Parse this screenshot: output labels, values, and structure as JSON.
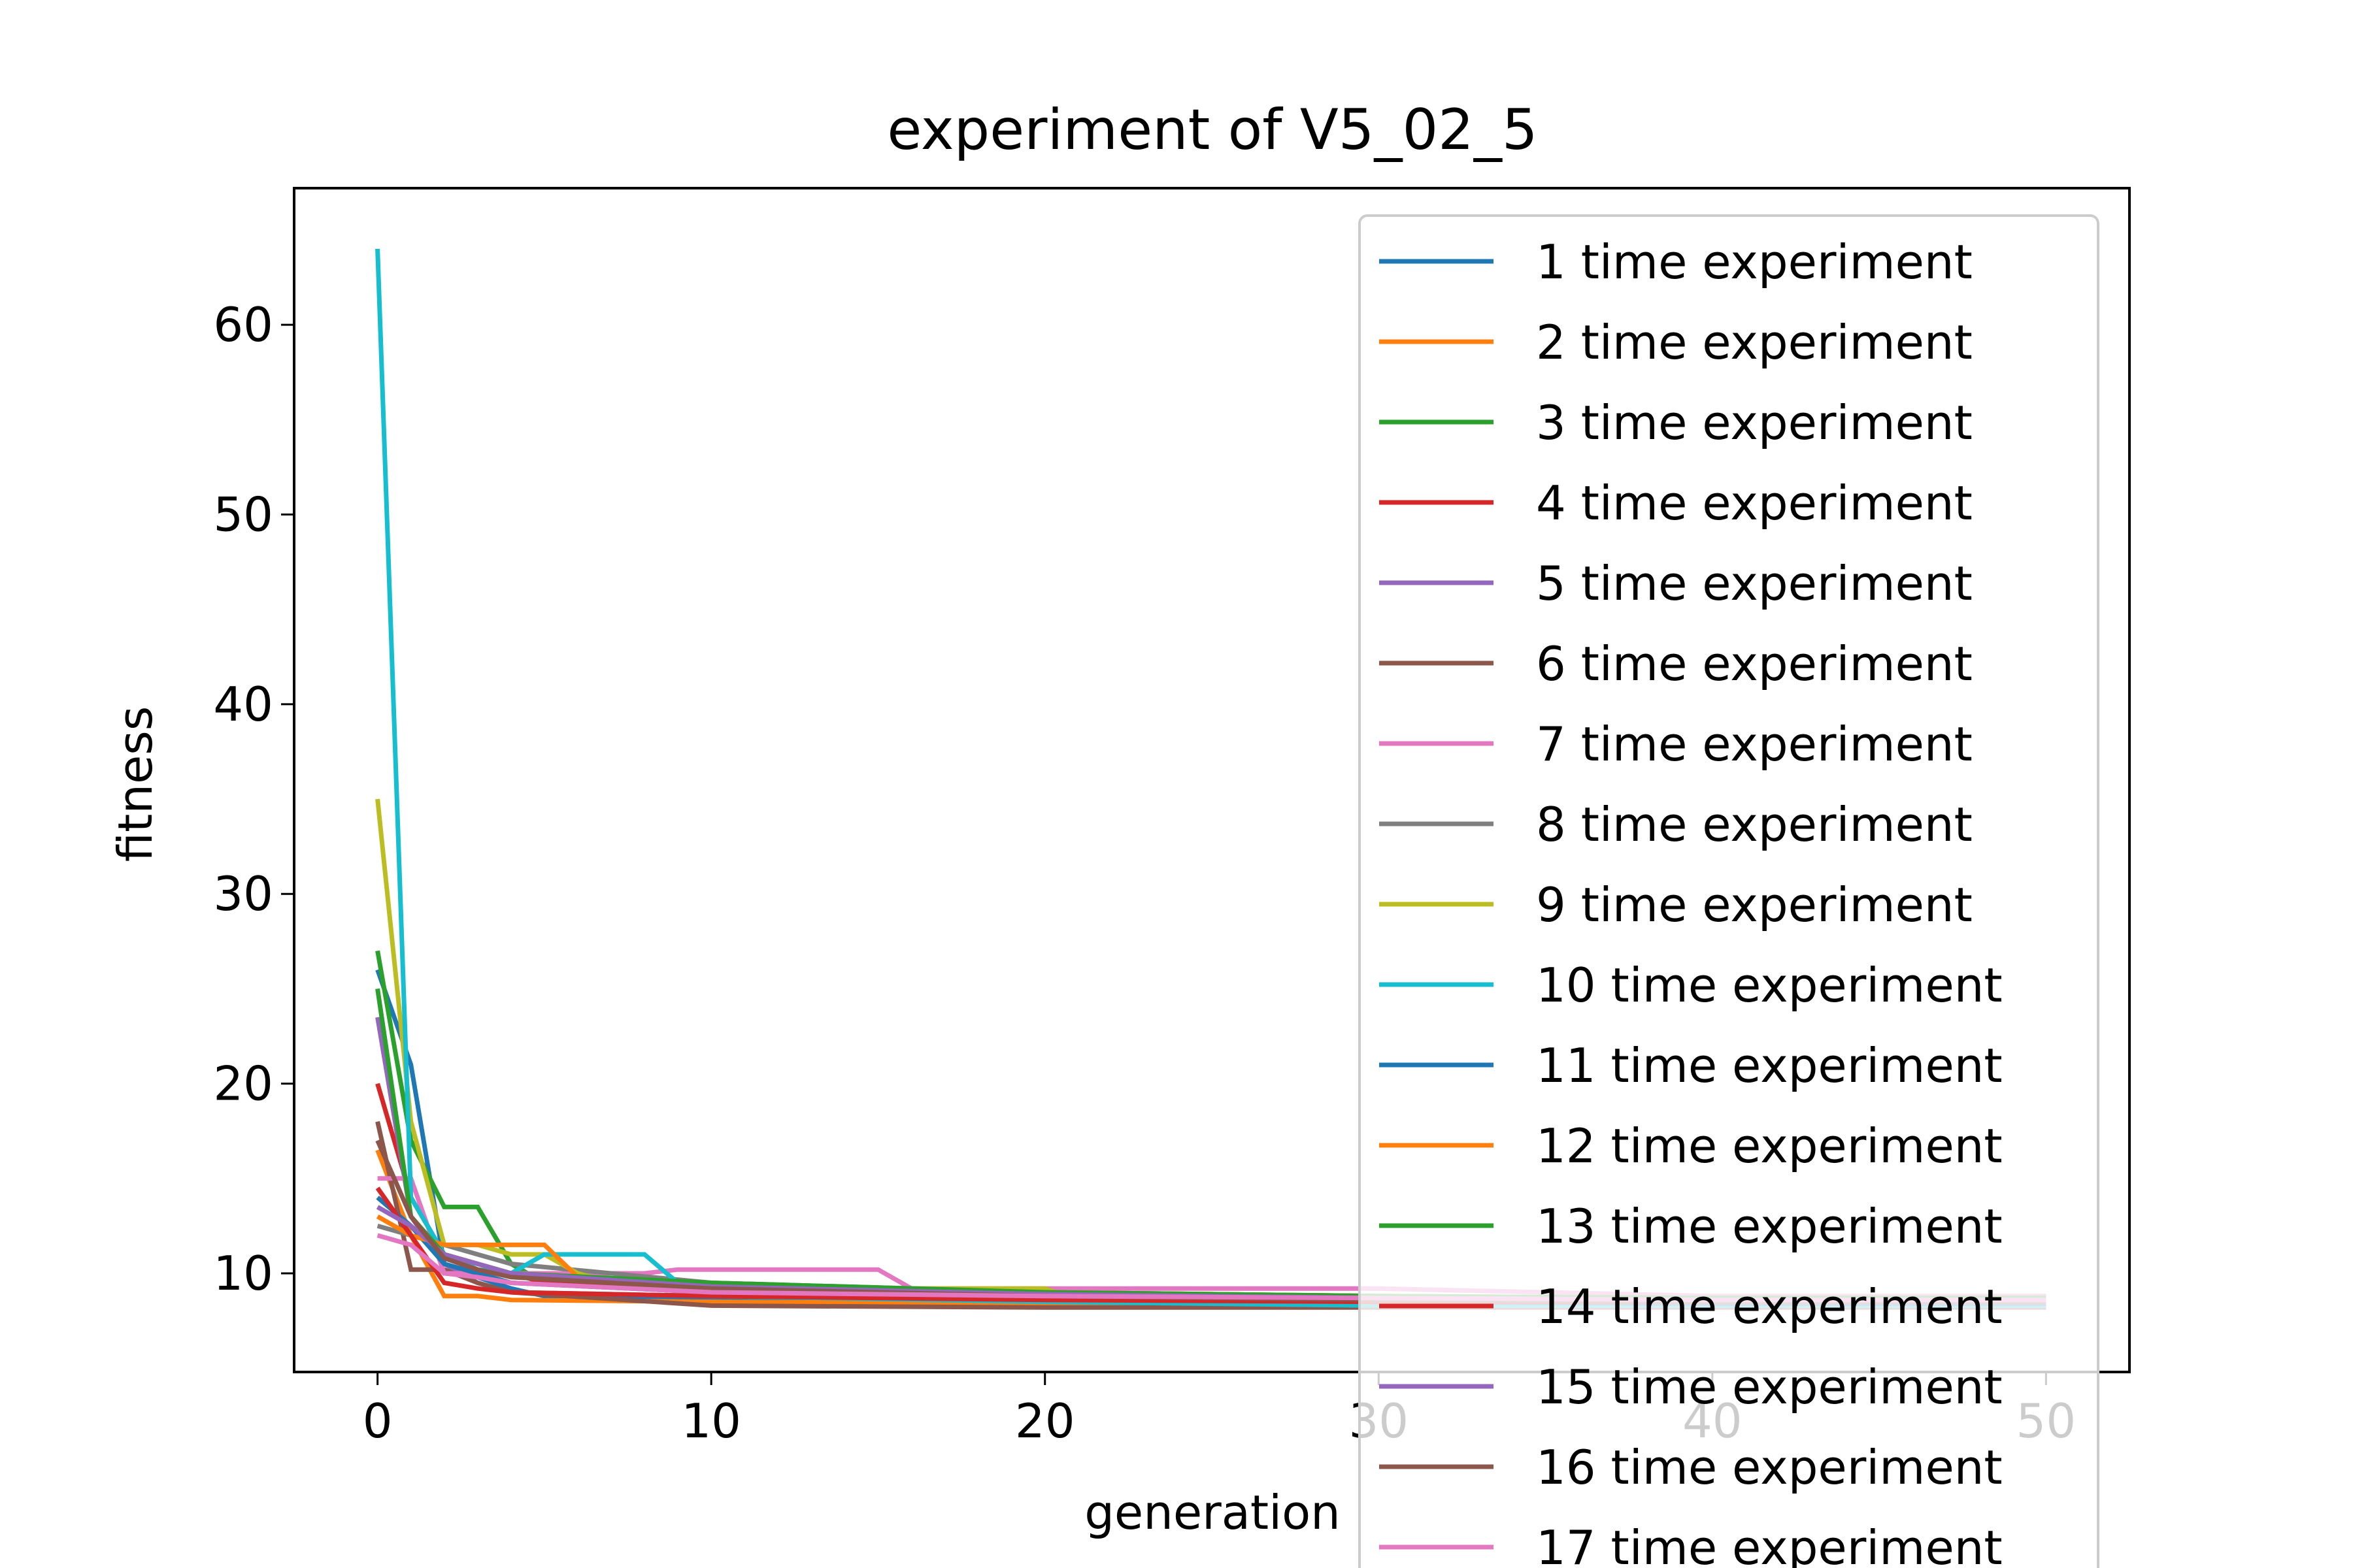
{
  "chart_data": {
    "type": "line",
    "title": "experiment of V5_02_5",
    "xlabel": "generation",
    "ylabel": "fitness",
    "xlim": [
      -2.5,
      52.5
    ],
    "ylim": [
      4.8,
      67.2
    ],
    "xticks": [
      "0",
      "10",
      "20",
      "30",
      "40",
      "50"
    ],
    "yticks": [
      "10",
      "20",
      "30",
      "40",
      "50",
      "60"
    ],
    "grid": false,
    "legend_position": "upper right",
    "colors": [
      "#1f77b4",
      "#ff7f0e",
      "#2ca02c",
      "#d62728",
      "#9467bd",
      "#8c564b",
      "#e377c2",
      "#7f7f7f",
      "#bcbd22",
      "#17becf"
    ],
    "series": [
      {
        "name": "1 time experiment",
        "x": [
          0,
          1,
          2,
          3,
          4,
          5,
          10,
          20,
          30,
          40,
          50
        ],
        "y": [
          26,
          21,
          10.5,
          9.8,
          9.2,
          8.8,
          8.6,
          8.5,
          8.4,
          8.4,
          8.4
        ]
      },
      {
        "name": "2 time experiment",
        "x": [
          0,
          1,
          2,
          3,
          4,
          10,
          20,
          30,
          40,
          50
        ],
        "y": [
          16.5,
          12,
          8.8,
          8.8,
          8.6,
          8.5,
          8.4,
          8.3,
          8.3,
          8.3
        ]
      },
      {
        "name": "3 time experiment",
        "x": [
          0,
          1,
          2,
          3,
          4,
          5,
          10,
          20,
          30,
          40,
          50
        ],
        "y": [
          27,
          17,
          13.5,
          13.5,
          10.5,
          9.5,
          9,
          8.8,
          8.6,
          8.5,
          8.5
        ]
      },
      {
        "name": "4 time experiment",
        "x": [
          0,
          1,
          2,
          3,
          4,
          5,
          10,
          20,
          30,
          40,
          50
        ],
        "y": [
          20,
          14,
          11,
          10.5,
          10,
          9.5,
          9,
          8.7,
          8.5,
          8.4,
          8.4
        ]
      },
      {
        "name": "5 time experiment",
        "x": [
          0,
          1,
          2,
          3,
          4,
          10,
          20,
          30,
          40,
          50
        ],
        "y": [
          23.5,
          13,
          10.5,
          9.5,
          9,
          8.8,
          8.6,
          8.5,
          8.5,
          8.5
        ]
      },
      {
        "name": "6 time experiment",
        "x": [
          0,
          1,
          2,
          3,
          4,
          10,
          20,
          30,
          40,
          50
        ],
        "y": [
          18,
          10.2,
          10.2,
          9.5,
          9,
          8.3,
          8.2,
          8.2,
          8.2,
          8.2
        ]
      },
      {
        "name": "7 time experiment",
        "x": [
          0,
          1,
          2,
          3,
          8,
          9,
          15,
          16,
          30,
          40,
          50
        ],
        "y": [
          15,
          15,
          10,
          10,
          10,
          10.2,
          10.2,
          9.2,
          9.2,
          8.8,
          8.8
        ]
      },
      {
        "name": "8 time experiment",
        "x": [
          0,
          1,
          2,
          3,
          4,
          10,
          20,
          30,
          40,
          50
        ],
        "y": [
          12.5,
          12,
          11.5,
          11,
          10.5,
          9.5,
          9,
          8.8,
          8.7,
          8.7
        ]
      },
      {
        "name": "9 time experiment",
        "x": [
          0,
          1,
          2,
          3,
          4,
          5,
          6,
          7,
          16,
          20,
          21,
          30,
          40,
          50
        ],
        "y": [
          35,
          18,
          11.5,
          11.5,
          11,
          11,
          10,
          9.5,
          9.2,
          9.2,
          8.6,
          8.5,
          8.5,
          8.5
        ]
      },
      {
        "name": "10 time experiment",
        "x": [
          0,
          1,
          2,
          3,
          4,
          5,
          8,
          9,
          10,
          20,
          30,
          40,
          50
        ],
        "y": [
          64,
          14,
          11,
          10.2,
          10,
          11,
          11,
          9.5,
          8.8,
          8.5,
          8.3,
          8.3,
          8.3
        ]
      },
      {
        "name": "11 time experiment",
        "x": [
          0,
          1,
          2,
          3,
          4,
          10,
          20,
          30,
          40,
          50
        ],
        "y": [
          14,
          12.5,
          10.5,
          10,
          9.5,
          9,
          8.7,
          8.5,
          8.4,
          8.4
        ]
      },
      {
        "name": "12 time experiment",
        "x": [
          0,
          1,
          2,
          3,
          4,
          5,
          6,
          10,
          20,
          30,
          40,
          50
        ],
        "y": [
          13,
          12,
          11.5,
          11.5,
          11.5,
          11.5,
          9.8,
          9.2,
          9,
          8.8,
          8.7,
          8.7
        ]
      },
      {
        "name": "13 time experiment",
        "x": [
          0,
          1,
          2,
          3,
          4,
          10,
          20,
          30,
          40,
          50
        ],
        "y": [
          25,
          13,
          11,
          10.5,
          10,
          9.5,
          9,
          8.8,
          8.7,
          8.7
        ]
      },
      {
        "name": "14 time experiment",
        "x": [
          0,
          1,
          2,
          3,
          4,
          10,
          20,
          30,
          40,
          50
        ],
        "y": [
          14.5,
          12,
          9.5,
          9.2,
          9,
          8.8,
          8.6,
          8.5,
          8.5,
          8.5
        ]
      },
      {
        "name": "15 time experiment",
        "x": [
          0,
          1,
          2,
          3,
          4,
          10,
          20,
          30,
          40,
          50
        ],
        "y": [
          13.5,
          12.5,
          11,
          10.5,
          10,
          9.3,
          8.9,
          8.7,
          8.6,
          8.6
        ]
      },
      {
        "name": "16 time experiment",
        "x": [
          0,
          1,
          2,
          3,
          4,
          10,
          20,
          30,
          40,
          50
        ],
        "y": [
          17,
          13,
          10.8,
          10.2,
          9.8,
          9.2,
          8.8,
          8.6,
          8.5,
          8.5
        ]
      },
      {
        "name": "17 time experiment",
        "x": [
          0,
          1,
          2,
          3,
          4,
          10,
          20,
          30,
          40,
          50
        ],
        "y": [
          12,
          11.5,
          10,
          9.8,
          9.5,
          9,
          8.8,
          8.7,
          8.6,
          8.6
        ]
      }
    ]
  }
}
